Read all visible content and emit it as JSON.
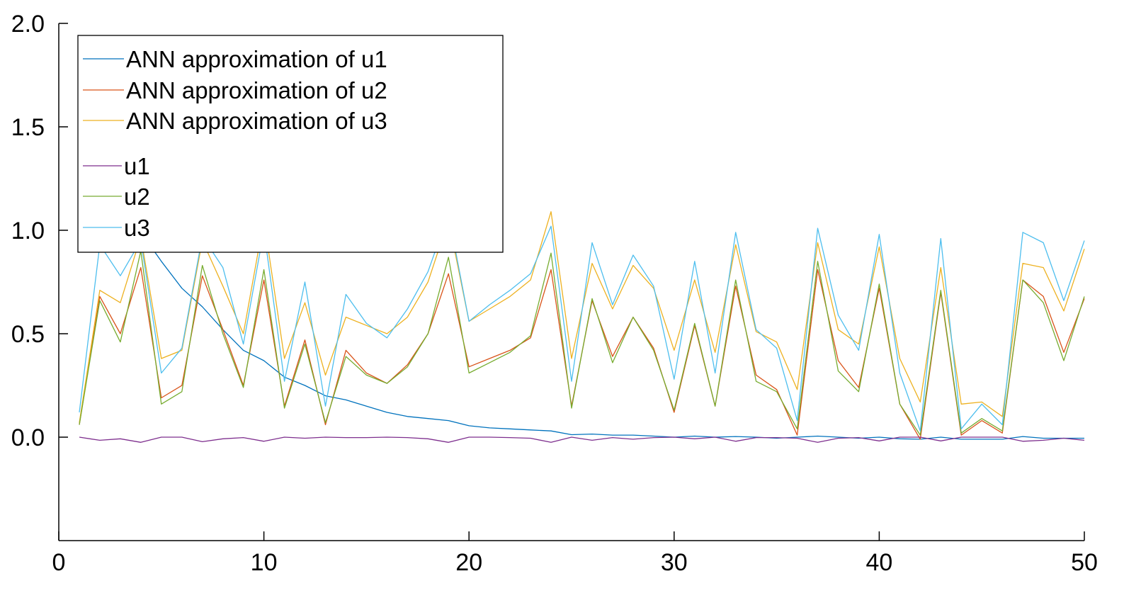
{
  "chart_data": {
    "type": "line",
    "title": "",
    "xlabel": "",
    "ylabel": "",
    "xlim": [
      0,
      50
    ],
    "ylim": [
      -0.5,
      2.0
    ],
    "x_ticks": [
      "0",
      "10",
      "20",
      "30",
      "40",
      "50"
    ],
    "y_ticks": [
      "0.0",
      "0.5",
      "1.0",
      "1.5",
      "2.0"
    ],
    "grid": false,
    "legend_position": "top-left",
    "x": [
      1,
      2,
      3,
      4,
      5,
      6,
      7,
      8,
      9,
      10,
      11,
      12,
      13,
      14,
      15,
      16,
      17,
      18,
      19,
      20,
      21,
      22,
      23,
      24,
      25,
      26,
      27,
      28,
      29,
      30,
      31,
      32,
      33,
      34,
      35,
      36,
      37,
      38,
      39,
      40,
      41,
      42,
      43,
      44,
      45,
      46,
      47,
      48,
      49,
      50
    ],
    "series": [
      {
        "name": "ANN approximation of u1",
        "color": "#0072BD",
        "values": [
          1.17,
          1.12,
          1.02,
          0.99,
          0.85,
          0.72,
          0.63,
          0.52,
          0.42,
          0.37,
          0.29,
          0.25,
          0.2,
          0.18,
          0.15,
          0.12,
          0.1,
          0.09,
          0.08,
          0.055,
          0.045,
          0.04,
          0.035,
          0.03,
          0.012,
          0.015,
          0.01,
          0.01,
          0.005,
          0.0,
          0.005,
          0.0,
          0.003,
          0.0,
          -0.005,
          0.0,
          0.005,
          0.0,
          -0.005,
          0.0,
          -0.008,
          -0.01,
          0.0,
          -0.01,
          -0.01,
          -0.01,
          0.003,
          -0.005,
          -0.005,
          -0.005
        ]
      },
      {
        "name": "ANN approximation of u2",
        "color": "#D95319",
        "values": [
          0.06,
          0.68,
          0.5,
          0.82,
          0.19,
          0.25,
          0.78,
          0.52,
          0.25,
          0.76,
          0.15,
          0.47,
          0.06,
          0.42,
          0.31,
          0.26,
          0.35,
          0.5,
          0.79,
          0.34,
          0.38,
          0.42,
          0.48,
          0.81,
          0.15,
          0.66,
          0.39,
          0.58,
          0.43,
          0.12,
          0.54,
          0.15,
          0.73,
          0.3,
          0.23,
          0.01,
          0.81,
          0.37,
          0.24,
          0.72,
          0.16,
          -0.01,
          0.7,
          0.01,
          0.08,
          0.02,
          0.76,
          0.68,
          0.41,
          0.67
        ]
      },
      {
        "name": "ANN approximation of u3",
        "color": "#EDB120",
        "values": [
          0.07,
          0.71,
          0.65,
          0.97,
          0.38,
          0.42,
          0.95,
          0.73,
          0.5,
          1.05,
          0.38,
          0.65,
          0.3,
          0.58,
          0.54,
          0.5,
          0.58,
          0.75,
          1.05,
          0.56,
          0.62,
          0.68,
          0.76,
          1.09,
          0.38,
          0.84,
          0.62,
          0.83,
          0.72,
          0.42,
          0.76,
          0.41,
          0.93,
          0.51,
          0.46,
          0.23,
          0.94,
          0.52,
          0.45,
          0.92,
          0.38,
          0.17,
          0.82,
          0.16,
          0.17,
          0.1,
          0.84,
          0.82,
          0.61,
          0.91
        ]
      },
      {
        "name": "u1",
        "color": "#7E2F8E",
        "values": [
          0.0,
          -0.015,
          -0.008,
          -0.025,
          0.0,
          0.0,
          -0.022,
          -0.008,
          -0.002,
          -0.02,
          0.0,
          -0.005,
          0.0,
          -0.002,
          -0.002,
          0.0,
          -0.002,
          -0.008,
          -0.025,
          0.0,
          0.0,
          -0.002,
          -0.005,
          -0.025,
          0.0,
          -0.015,
          -0.002,
          -0.01,
          -0.002,
          0.0,
          -0.008,
          0.0,
          -0.02,
          -0.002,
          -0.002,
          -0.005,
          -0.025,
          -0.005,
          -0.002,
          -0.018,
          0.0,
          0.0,
          -0.018,
          0.0,
          0.0,
          0.0,
          -0.02,
          -0.015,
          -0.005,
          -0.015
        ]
      },
      {
        "name": "u2",
        "color": "#77AC30",
        "values": [
          0.06,
          0.66,
          0.46,
          0.9,
          0.16,
          0.22,
          0.83,
          0.5,
          0.24,
          0.81,
          0.14,
          0.45,
          0.07,
          0.39,
          0.3,
          0.26,
          0.34,
          0.5,
          0.87,
          0.31,
          0.36,
          0.41,
          0.49,
          0.89,
          0.14,
          0.67,
          0.36,
          0.58,
          0.42,
          0.13,
          0.55,
          0.15,
          0.76,
          0.27,
          0.22,
          0.04,
          0.85,
          0.32,
          0.22,
          0.74,
          0.16,
          0.01,
          0.71,
          0.02,
          0.09,
          0.03,
          0.76,
          0.65,
          0.37,
          0.68
        ]
      },
      {
        "name": "u3",
        "color": "#4DBEEE",
        "values": [
          0.12,
          0.93,
          0.78,
          0.95,
          0.31,
          0.43,
          0.97,
          0.82,
          0.45,
          1.0,
          0.27,
          0.75,
          0.15,
          0.69,
          0.55,
          0.48,
          0.62,
          0.8,
          1.08,
          0.56,
          0.64,
          0.71,
          0.79,
          1.02,
          0.27,
          0.94,
          0.64,
          0.88,
          0.73,
          0.28,
          0.85,
          0.31,
          0.99,
          0.52,
          0.43,
          0.08,
          1.01,
          0.59,
          0.42,
          0.98,
          0.31,
          0.03,
          0.96,
          0.04,
          0.16,
          0.06,
          0.99,
          0.94,
          0.66,
          0.95
        ]
      }
    ]
  }
}
